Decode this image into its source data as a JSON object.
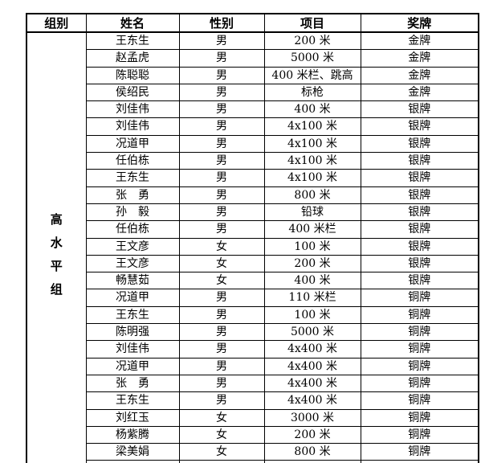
{
  "colors": {
    "background": "#ffffff",
    "border": "#000000",
    "text": "#000000"
  },
  "header": {
    "columns": [
      "组别",
      "姓名",
      "性别",
      "项目",
      "奖牌"
    ]
  },
  "group": {
    "label": "高水平组"
  },
  "table": {
    "rows": [
      {
        "name": "王东生",
        "gender": "男",
        "event": "200 米",
        "medal": "金牌"
      },
      {
        "name": "赵孟虎",
        "gender": "男",
        "event": "5000 米",
        "medal": "金牌"
      },
      {
        "name": "陈聪聪",
        "gender": "男",
        "event": "400 米栏、跳高",
        "medal": "金牌"
      },
      {
        "name": "侯绍民",
        "gender": "男",
        "event": "标枪",
        "medal": "金牌"
      },
      {
        "name": "刘佳伟",
        "gender": "男",
        "event": "400 米",
        "medal": "银牌"
      },
      {
        "name": "刘佳伟",
        "gender": "男",
        "event": "4x100 米",
        "medal": "银牌"
      },
      {
        "name": "况道甲",
        "gender": "男",
        "event": "4x100 米",
        "medal": "银牌"
      },
      {
        "name": "任伯栋",
        "gender": "男",
        "event": "4x100 米",
        "medal": "银牌"
      },
      {
        "name": "王东生",
        "gender": "男",
        "event": "4x100 米",
        "medal": "银牌"
      },
      {
        "name": "张　勇",
        "gender": "男",
        "event": "800 米",
        "medal": "银牌"
      },
      {
        "name": "孙　毅",
        "gender": "男",
        "event": "铅球",
        "medal": "银牌"
      },
      {
        "name": "任伯栋",
        "gender": "男",
        "event": "400 米栏",
        "medal": "银牌"
      },
      {
        "name": "王文彦",
        "gender": "女",
        "event": "100 米",
        "medal": "银牌"
      },
      {
        "name": "王文彦",
        "gender": "女",
        "event": "200 米",
        "medal": "银牌"
      },
      {
        "name": "畅慧茹",
        "gender": "女",
        "event": "400 米",
        "medal": "银牌"
      },
      {
        "name": "况道甲",
        "gender": "男",
        "event": "110 米栏",
        "medal": "铜牌"
      },
      {
        "name": "王东生",
        "gender": "男",
        "event": "100 米",
        "medal": "铜牌"
      },
      {
        "name": "陈明强",
        "gender": "男",
        "event": "5000 米",
        "medal": "铜牌"
      },
      {
        "name": "刘佳伟",
        "gender": "男",
        "event": "4x400 米",
        "medal": "铜牌"
      },
      {
        "name": "况道甲",
        "gender": "男",
        "event": "4x400 米",
        "medal": "铜牌"
      },
      {
        "name": "张　勇",
        "gender": "男",
        "event": "4x400 米",
        "medal": "铜牌"
      },
      {
        "name": "王东生",
        "gender": "男",
        "event": "4x400 米",
        "medal": "铜牌"
      },
      {
        "name": "刘红玉",
        "gender": "女",
        "event": "3000 米",
        "medal": "铜牌"
      },
      {
        "name": "杨紫腾",
        "gender": "女",
        "event": "200 米",
        "medal": "铜牌"
      },
      {
        "name": "梁美娟",
        "gender": "女",
        "event": "800 米",
        "medal": "铜牌"
      }
    ]
  }
}
